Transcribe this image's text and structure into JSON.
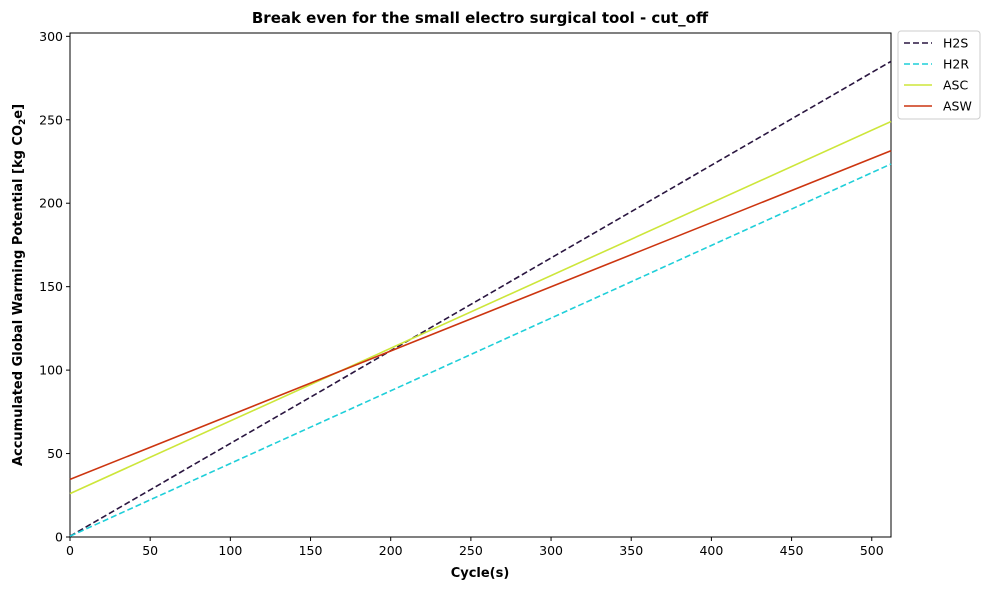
{
  "chart_data": {
    "type": "line",
    "title": "Break even for the small electro surgical tool - cut_off",
    "xlabel": "Cycle(s)",
    "ylabel_main": "Accumulated Global Warming Potential [kg CO",
    "ylabel_sub": "2",
    "ylabel_end": "e]",
    "xlim": [
      0,
      512
    ],
    "ylim": [
      0,
      302
    ],
    "xticks": [
      0,
      50,
      100,
      150,
      200,
      250,
      300,
      350,
      400,
      450,
      500
    ],
    "yticks": [
      0,
      50,
      100,
      150,
      200,
      250,
      300
    ],
    "grid": false,
    "legend_position": "outside-top-right",
    "series": [
      {
        "name": "H2S",
        "color": "#2a1640",
        "dash": "dashed",
        "x": [
          0,
          512
        ],
        "y": [
          0.5,
          285
        ]
      },
      {
        "name": "H2R",
        "color": "#1fcfd9",
        "dash": "dashed",
        "x": [
          0,
          512
        ],
        "y": [
          0.5,
          223.5
        ]
      },
      {
        "name": "ASC",
        "color": "#cde63a",
        "dash": "solid",
        "x": [
          0,
          512
        ],
        "y": [
          26,
          249
        ]
      },
      {
        "name": "ASW",
        "color": "#cc3510",
        "dash": "solid",
        "x": [
          0,
          512
        ],
        "y": [
          34.5,
          231.5
        ]
      }
    ]
  }
}
